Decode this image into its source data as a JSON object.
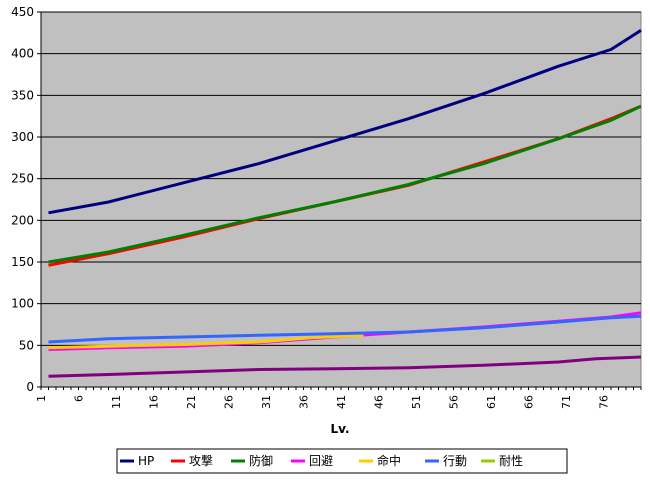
{
  "chart_data": {
    "type": "line",
    "xlabel": "Lv.",
    "ylabel": "",
    "ylim": [
      0,
      450
    ],
    "y_ticks": [
      0,
      50,
      100,
      150,
      200,
      250,
      300,
      350,
      400,
      450
    ],
    "x_tick_labels": [
      "1",
      "6",
      "11",
      "16",
      "21",
      "26",
      "31",
      "36",
      "41",
      "46",
      "51",
      "56",
      "61",
      "66",
      "71",
      "76"
    ],
    "xlim": [
      1,
      81
    ],
    "grid": "horizontal",
    "legend_position": "bottom",
    "plot_background": "#c0c0c0",
    "series": [
      {
        "name": "HP",
        "color": "#000080",
        "points": [
          [
            2,
            209
          ],
          [
            10,
            222
          ],
          [
            20,
            245
          ],
          [
            30,
            268
          ],
          [
            40,
            295
          ],
          [
            50,
            322
          ],
          [
            60,
            352
          ],
          [
            70,
            385
          ],
          [
            77,
            405
          ],
          [
            81,
            428
          ]
        ]
      },
      {
        "name": "攻撃",
        "color": "#ff0000",
        "points": [
          [
            2,
            146
          ],
          [
            10,
            160
          ],
          [
            20,
            180
          ],
          [
            30,
            202
          ],
          [
            40,
            222
          ],
          [
            50,
            242
          ],
          [
            60,
            270
          ],
          [
            70,
            298
          ],
          [
            77,
            322
          ],
          [
            81,
            337
          ]
        ]
      },
      {
        "name": "防御",
        "color": "#008000",
        "points": [
          [
            2,
            150
          ],
          [
            10,
            162
          ],
          [
            20,
            182
          ],
          [
            30,
            203
          ],
          [
            40,
            222
          ],
          [
            50,
            243
          ],
          [
            60,
            268
          ],
          [
            70,
            298
          ],
          [
            77,
            320
          ],
          [
            81,
            337
          ]
        ]
      },
      {
        "name": "回避",
        "color": "#ff00ff",
        "points": [
          [
            2,
            45
          ],
          [
            10,
            47
          ],
          [
            20,
            49
          ],
          [
            30,
            53
          ],
          [
            40,
            60
          ],
          [
            50,
            66
          ],
          [
            60,
            72
          ],
          [
            70,
            79
          ],
          [
            77,
            84
          ],
          [
            81,
            89
          ]
        ]
      },
      {
        "name": "命中",
        "color": "#ffcc00",
        "points": [
          [
            2,
            47
          ],
          [
            10,
            49
          ],
          [
            20,
            51
          ],
          [
            30,
            54
          ],
          [
            37,
            59
          ],
          [
            44,
            62
          ]
        ]
      },
      {
        "name": "行動",
        "color": "#3366ff",
        "points": [
          [
            2,
            54
          ],
          [
            10,
            58
          ],
          [
            20,
            60
          ],
          [
            30,
            62
          ],
          [
            40,
            64
          ],
          [
            50,
            66
          ],
          [
            60,
            71
          ],
          [
            70,
            78
          ],
          [
            77,
            83
          ],
          [
            81,
            85
          ]
        ]
      },
      {
        "name": "耐性",
        "color": "#99cc00",
        "points": []
      },
      {
        "name": "",
        "color": "#800080",
        "points": [
          [
            2,
            13
          ],
          [
            10,
            15
          ],
          [
            20,
            18
          ],
          [
            30,
            21
          ],
          [
            40,
            22
          ],
          [
            50,
            23
          ],
          [
            60,
            26
          ],
          [
            70,
            30
          ],
          [
            75,
            34
          ],
          [
            81,
            36
          ]
        ]
      }
    ]
  }
}
